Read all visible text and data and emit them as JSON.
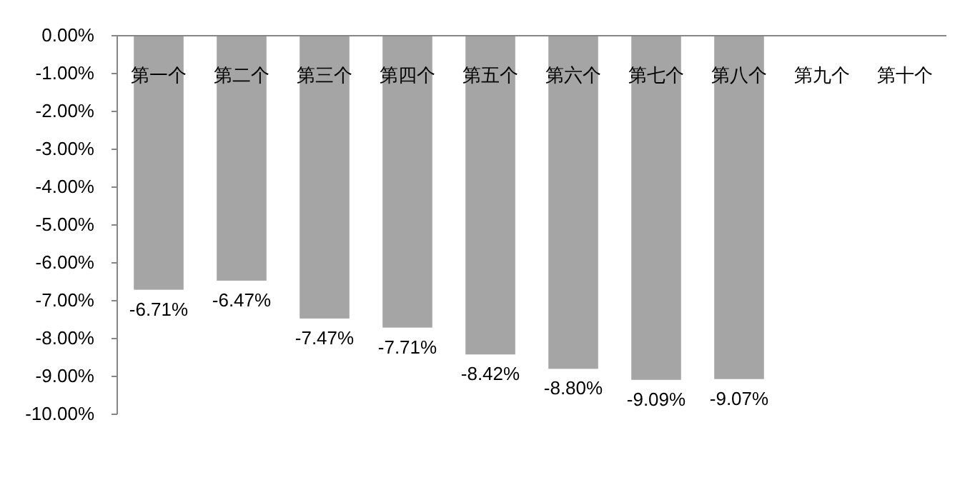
{
  "chart_data": {
    "type": "bar",
    "categories": [
      "第一个",
      "第二个",
      "第三个",
      "第四个",
      "第五个",
      "第六个",
      "第七个",
      "第八个",
      "第九个",
      "第十个"
    ],
    "values": [
      -6.71,
      -6.47,
      -7.47,
      -7.71,
      -8.42,
      -8.8,
      -9.09,
      -9.07,
      null,
      null
    ],
    "value_labels": [
      "-6.71%",
      "-6.47%",
      "-7.47%",
      "-7.71%",
      "-8.42%",
      "-8.80%",
      "-9.09%",
      "-9.07%",
      null,
      null
    ],
    "color": "#a5a5a5",
    "ylim": [
      -10,
      0
    ],
    "yticks": [
      {
        "value": 0,
        "label": "0.00%"
      },
      {
        "value": -1,
        "label": "-1.00%"
      },
      {
        "value": -2,
        "label": "-2.00%"
      },
      {
        "value": -3,
        "label": "-3.00%"
      },
      {
        "value": -4,
        "label": "-4.00%"
      },
      {
        "value": -5,
        "label": "-5.00%"
      },
      {
        "value": -6,
        "label": "-6.00%"
      },
      {
        "value": -7,
        "label": "-7.00%"
      },
      {
        "value": -8,
        "label": "-8.00%"
      },
      {
        "value": -9,
        "label": "-9.00%"
      },
      {
        "value": -10,
        "label": "-10.00%"
      }
    ],
    "grid": false
  }
}
